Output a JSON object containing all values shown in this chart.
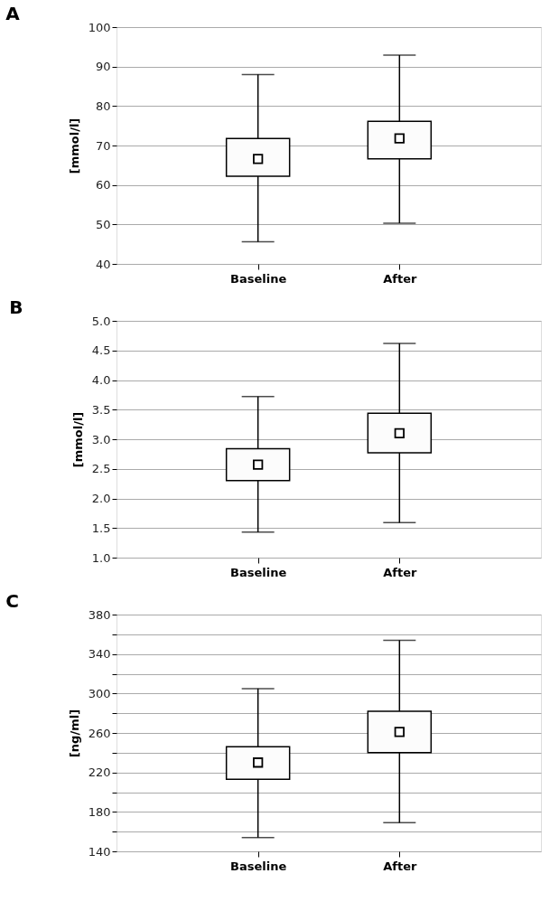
{
  "chart_data": [
    {
      "type": "box",
      "title": "A",
      "ylabel": "[mmol/l]",
      "categories": [
        "Baseline",
        "After"
      ],
      "boxes": [
        {
          "low": 45.6,
          "q1": 62.2,
          "median": 66.6,
          "q3": 71.8,
          "high": 88.0
        },
        {
          "low": 50.3,
          "q1": 66.6,
          "median": 71.8,
          "q3": 76.1,
          "high": 92.9
        }
      ],
      "ylim": [
        40,
        100
      ],
      "yticks": [
        40,
        50,
        60,
        70,
        80,
        90,
        100
      ],
      "grid": "y"
    },
    {
      "type": "box",
      "title": "B",
      "ylabel": "[mmol/l]",
      "categories": [
        "Baseline",
        "After"
      ],
      "boxes": [
        {
          "low": 1.43,
          "q1": 2.3,
          "median": 2.57,
          "q3": 2.84,
          "high": 3.72
        },
        {
          "low": 1.59,
          "q1": 2.77,
          "median": 3.1,
          "q3": 3.44,
          "high": 4.62
        }
      ],
      "ylim": [
        1.0,
        5.0
      ],
      "yticks": [
        {
          "value": 1,
          "label": "1.0"
        },
        1.5,
        {
          "value": 2,
          "label": "2.0"
        },
        2.5,
        {
          "value": 3,
          "label": "3.0"
        },
        3.5,
        {
          "value": 4,
          "label": "4.0"
        },
        4.5,
        {
          "value": 5,
          "label": "5.0"
        }
      ],
      "grid": "y"
    },
    {
      "type": "box",
      "title": "C",
      "ylabel": "[ng/ml]",
      "categories": [
        "Baseline",
        "After"
      ],
      "boxes": [
        {
          "low": 154,
          "q1": 213,
          "median": 230,
          "q3": 246,
          "high": 305
        },
        {
          "low": 169,
          "q1": 240,
          "median": 261,
          "q3": 282,
          "high": 354
        }
      ],
      "ylim": [
        140,
        380
      ],
      "yticks": [
        140,
        {
          "value": 160,
          "label": null
        },
        180,
        {
          "value": 200,
          "label": null
        },
        220,
        {
          "value": 240,
          "label": null
        },
        260,
        {
          "value": 280,
          "label": null
        },
        300,
        {
          "value": 320,
          "label": null
        },
        340,
        {
          "value": 360,
          "label": null
        },
        380
      ],
      "grid": "y"
    }
  ]
}
